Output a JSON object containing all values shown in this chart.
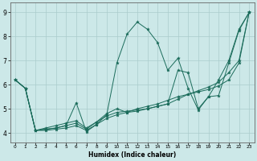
{
  "xlabel": "Humidex (Indice chaleur)",
  "bg_color": "#cce8e8",
  "line_color": "#1a6b5a",
  "grid_color": "#aacccc",
  "xlim": [
    -0.5,
    23.5
  ],
  "ylim": [
    3.6,
    9.4
  ],
  "xticks": [
    0,
    1,
    2,
    3,
    4,
    5,
    6,
    7,
    8,
    9,
    10,
    11,
    12,
    13,
    14,
    15,
    16,
    17,
    18,
    19,
    20,
    21,
    22,
    23
  ],
  "yticks": [
    4,
    5,
    6,
    7,
    8,
    9
  ],
  "lines": [
    {
      "x": [
        0,
        1,
        2,
        3,
        4,
        5,
        6,
        7,
        8,
        9,
        10,
        11,
        12,
        13,
        14,
        15,
        16,
        17,
        18,
        19,
        20,
        21,
        22,
        23
      ],
      "y": [
        6.2,
        5.85,
        4.1,
        4.15,
        4.2,
        4.3,
        5.25,
        4.05,
        4.35,
        4.75,
        6.9,
        8.1,
        8.6,
        8.3,
        7.75,
        6.6,
        7.1,
        5.85,
        4.95,
        5.5,
        6.2,
        7.0,
        8.3,
        9.0
      ]
    },
    {
      "x": [
        0,
        1,
        2,
        3,
        4,
        5,
        6,
        7,
        8,
        9,
        10,
        11,
        12,
        13,
        14,
        15,
        16,
        17,
        18,
        19,
        20,
        21,
        22,
        23
      ],
      "y": [
        6.2,
        5.85,
        4.1,
        4.2,
        4.3,
        4.4,
        4.5,
        4.2,
        4.45,
        4.8,
        5.0,
        4.85,
        4.9,
        5.0,
        5.1,
        5.2,
        6.6,
        6.5,
        5.0,
        5.5,
        5.55,
        6.9,
        8.25,
        9.0
      ]
    },
    {
      "x": [
        0,
        1,
        2,
        3,
        4,
        5,
        6,
        7,
        8,
        9,
        10,
        11,
        12,
        13,
        14,
        15,
        16,
        17,
        18,
        19,
        20,
        21,
        22,
        23
      ],
      "y": [
        6.2,
        5.85,
        4.1,
        4.15,
        4.2,
        4.3,
        4.4,
        4.15,
        4.45,
        4.7,
        4.85,
        4.9,
        4.95,
        5.0,
        5.1,
        5.2,
        5.4,
        5.6,
        5.75,
        5.9,
        6.1,
        6.5,
        7.0,
        9.0
      ]
    },
    {
      "x": [
        0,
        1,
        2,
        3,
        4,
        5,
        6,
        7,
        8,
        9,
        10,
        11,
        12,
        13,
        14,
        15,
        16,
        17,
        18,
        19,
        20,
        21,
        22,
        23
      ],
      "y": [
        6.2,
        5.85,
        4.1,
        4.1,
        4.15,
        4.2,
        4.3,
        4.1,
        4.35,
        4.6,
        4.75,
        4.85,
        5.0,
        5.1,
        5.2,
        5.35,
        5.5,
        5.6,
        5.7,
        5.8,
        5.95,
        6.2,
        6.9,
        9.0
      ]
    }
  ]
}
